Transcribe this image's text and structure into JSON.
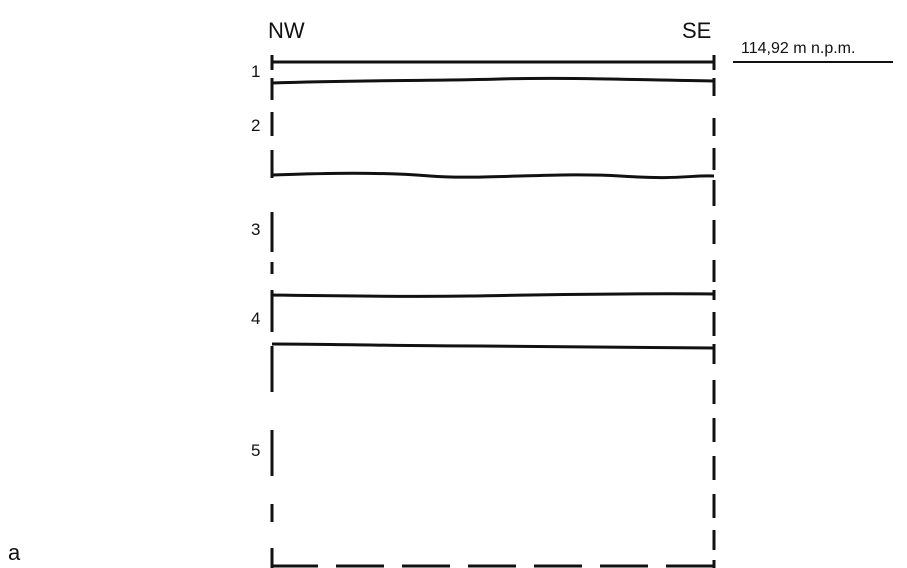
{
  "figure": {
    "panel_label": "a",
    "orientation": {
      "left": "NW",
      "right": "SE"
    },
    "elevation_label": "114,92 m n.p.m.",
    "layers": [
      {
        "number": "1"
      },
      {
        "number": "2"
      },
      {
        "number": "3"
      },
      {
        "number": "4"
      },
      {
        "number": "5"
      }
    ],
    "line_color": "#111111"
  }
}
